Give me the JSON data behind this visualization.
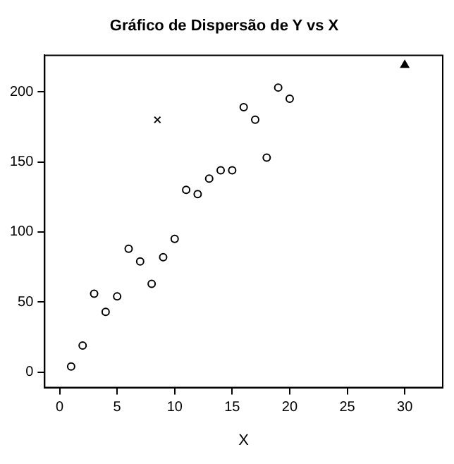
{
  "chart_data": {
    "type": "scatter",
    "title": "Gráfico de Dispersão de Y vs X",
    "xlabel": "X",
    "xlim": [
      -1.3,
      33.3
    ],
    "xticks": [
      0,
      5,
      10,
      15,
      20,
      25,
      30
    ],
    "ylim": [
      -11,
      226
    ],
    "yticks": [
      0,
      50,
      100,
      150,
      200
    ],
    "grid": false,
    "legend": false,
    "series": [
      {
        "color": "#000000",
        "marker": "circle",
        "x": [
          1,
          2,
          3,
          4,
          5,
          6,
          7,
          8,
          9,
          10,
          11,
          12,
          13,
          14,
          15,
          16,
          17,
          18,
          19,
          20
        ],
        "values": [
          4,
          19,
          56,
          43,
          54,
          88,
          79,
          63,
          82,
          95,
          130,
          127,
          138,
          144,
          144,
          189,
          180,
          153,
          203,
          195
        ]
      },
      {
        "color": "#000000",
        "marker": "cross",
        "x": [
          8.5
        ],
        "values": [
          180
        ]
      },
      {
        "color": "#000000",
        "marker": "triangle",
        "x": [
          30
        ],
        "values": [
          219
        ]
      }
    ]
  }
}
